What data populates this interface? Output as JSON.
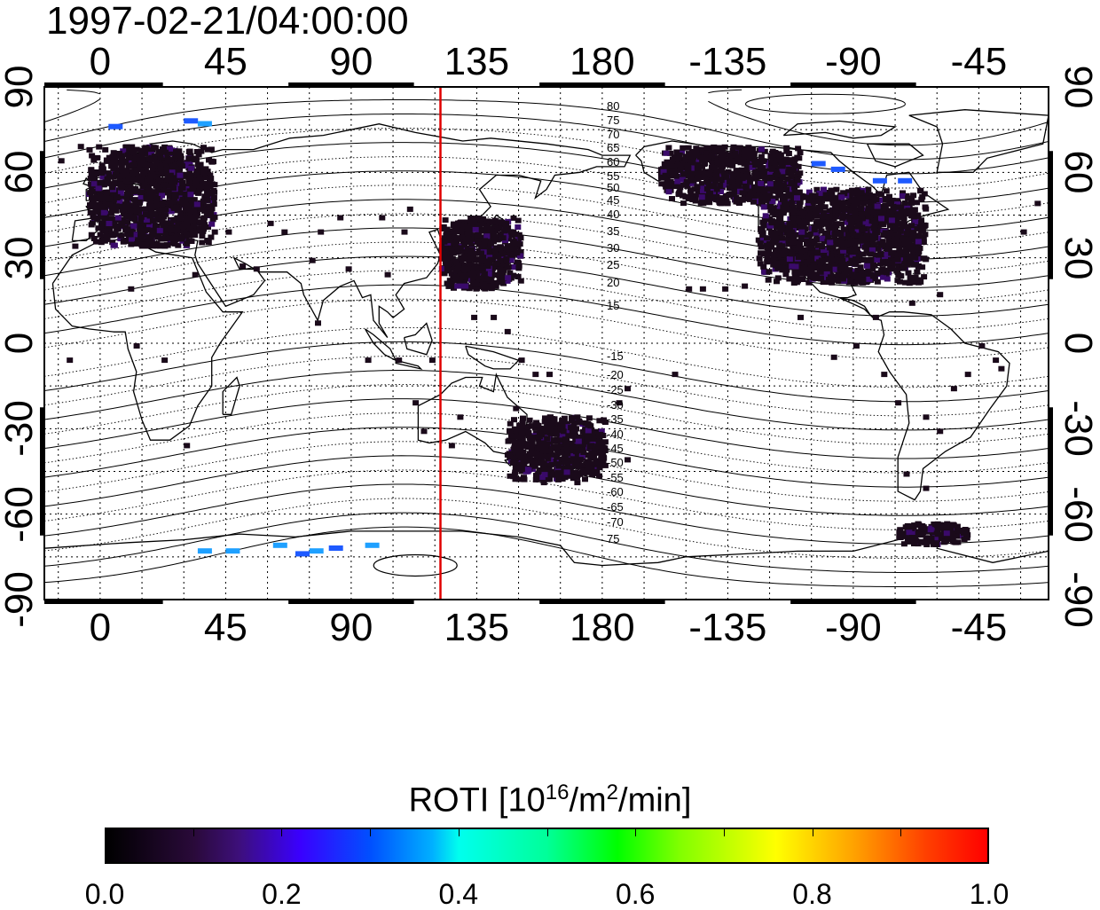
{
  "timestamp": "1997-02-21/04:00:00",
  "top_lon_ticks": [
    "0",
    "45",
    "90",
    "135",
    "180",
    "-135",
    "-90",
    "-45"
  ],
  "bottom_lon_ticks": [
    "0",
    "45",
    "90",
    "135",
    "180",
    "-135",
    "-90",
    "-45"
  ],
  "left_lat_ticks": [
    "90",
    "60",
    "30",
    "0",
    "-30",
    "-60",
    "-90"
  ],
  "right_lat_ticks": [
    "90",
    "60",
    "30",
    "0",
    "-30",
    "-60",
    "-90"
  ],
  "contour_labels_north": [
    "80",
    "75",
    "70",
    "65",
    "60",
    "55",
    "50",
    "45",
    "40",
    "35",
    "30",
    "25",
    "20",
    "15"
  ],
  "contour_labels_south": [
    "-15",
    "-20",
    "-25",
    "-30",
    "-35",
    "-40",
    "-45",
    "-50",
    "-55",
    "-60",
    "-65",
    "-70",
    "75"
  ],
  "colorbar": {
    "title_text": "ROTI  [10",
    "title_sup1": "16",
    "title_mid": "/m",
    "title_sup2": "2",
    "title_end": "/min]",
    "ticks": [
      "0.0",
      "0.2",
      "0.4",
      "0.6",
      "0.8",
      "1.0"
    ],
    "range": [
      0.0,
      1.0
    ]
  },
  "map": {
    "projection": "equirectangular",
    "lon_range": [
      -20,
      340
    ],
    "lat_range": [
      -90,
      90
    ],
    "red_meridian_lon": 122,
    "colors": {
      "meridian": "#e00000",
      "low": "#1a0a1a",
      "mid_low": "#3a0a6a",
      "blue": "#1e5aff",
      "cyan": "#1ea0ff"
    },
    "roti_regions": [
      {
        "name": "europe",
        "lon": [
          -5,
          40
        ],
        "lat": [
          35,
          70
        ],
        "value": 0.02
      },
      {
        "name": "east-asia",
        "lon": [
          121,
          150
        ],
        "lat": [
          20,
          45
        ],
        "value": 0.03
      },
      {
        "name": "north-america",
        "lon": [
          235,
          295
        ],
        "lat": [
          22,
          55
        ],
        "value": 0.02
      },
      {
        "name": "alaska-canada",
        "lon": [
          200,
          250
        ],
        "lat": [
          50,
          70
        ],
        "value": 0.03
      },
      {
        "name": "australia-nz",
        "lon": [
          145,
          180
        ],
        "lat": [
          -47,
          -25
        ],
        "value": 0.03
      },
      {
        "name": "antarctic-peninsula",
        "lon": [
          285,
          310
        ],
        "lat": [
          -70,
          -62
        ],
        "value": 0.04
      }
    ],
    "roti_high_points": [
      {
        "lon": 3,
        "lat": 77,
        "value": 0.25
      },
      {
        "lon": 30,
        "lat": 79,
        "value": 0.28
      },
      {
        "lon": 35,
        "lat": 78,
        "value": 0.3
      },
      {
        "lon": 255,
        "lat": 64,
        "value": 0.27
      },
      {
        "lon": 262,
        "lat": 62,
        "value": 0.26
      },
      {
        "lon": 277,
        "lat": 58,
        "value": 0.24
      },
      {
        "lon": 286,
        "lat": 58,
        "value": 0.27
      },
      {
        "lon": 127,
        "lat": 21,
        "value": 0.15
      },
      {
        "lon": 45,
        "lat": -72,
        "value": 0.33
      },
      {
        "lon": 62,
        "lat": -70,
        "value": 0.37
      },
      {
        "lon": 75,
        "lat": -72,
        "value": 0.3
      },
      {
        "lon": 82,
        "lat": -71,
        "value": 0.25
      },
      {
        "lon": 95,
        "lat": -70,
        "value": 0.32
      },
      {
        "lon": 35,
        "lat": -72,
        "value": 0.33
      },
      {
        "lon": 70,
        "lat": -73,
        "value": 0.28
      }
    ]
  }
}
